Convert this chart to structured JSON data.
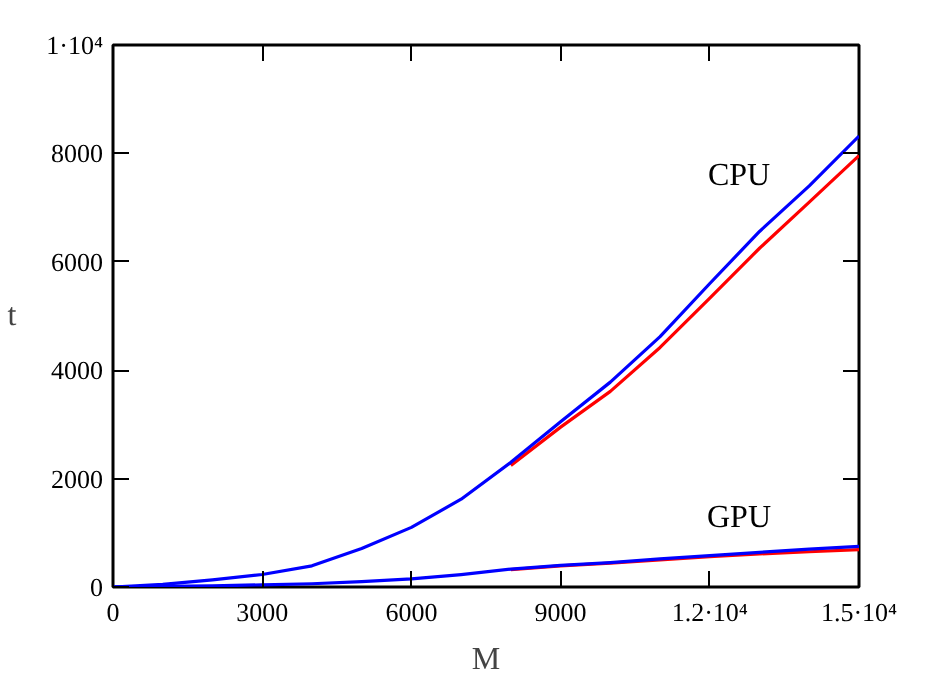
{
  "chart_data": {
    "type": "line",
    "xlabel": "M",
    "ylabel": "t",
    "x": [
      0,
      1000,
      2000,
      3000,
      4000,
      5000,
      6000,
      7000,
      8000,
      9000,
      10000,
      11000,
      12000,
      13000,
      14000,
      15000
    ],
    "series": [
      {
        "color": "#ff0000",
        "values": [
          null,
          null,
          null,
          null,
          null,
          null,
          null,
          null,
          2240,
          2950,
          3610,
          4420,
          5330,
          6250,
          7100,
          7960
        ]
      },
      {
        "color": "#0000ff",
        "values": [
          0,
          50,
          130,
          230,
          390,
          710,
          1100,
          1620,
          2300,
          3050,
          3780,
          4620,
          5600,
          6560,
          7400,
          8320
        ]
      },
      {
        "color": "#ff0000",
        "values": [
          null,
          null,
          null,
          null,
          null,
          null,
          null,
          null,
          320,
          390,
          440,
          500,
          560,
          610,
          650,
          690
        ]
      },
      {
        "color": "#0000ff",
        "values": [
          0,
          10,
          20,
          40,
          60,
          100,
          150,
          230,
          330,
          400,
          450,
          520,
          580,
          640,
          700,
          750
        ]
      }
    ],
    "xlim": [
      0,
      15000
    ],
    "ylim": [
      0,
      10000
    ],
    "xticks": [
      0,
      3000,
      6000,
      9000,
      {
        "value": 12000,
        "label": "1.2·10⁴"
      },
      {
        "value": 15000,
        "label": "1.5·10⁴"
      }
    ],
    "yticks": [
      0,
      2000,
      4000,
      6000,
      8000,
      {
        "value": 10000,
        "label": "1·10⁴"
      }
    ],
    "grid": false,
    "marker": "none",
    "line_style": "solid",
    "annotations": [
      "CPU",
      "GPU"
    ]
  }
}
